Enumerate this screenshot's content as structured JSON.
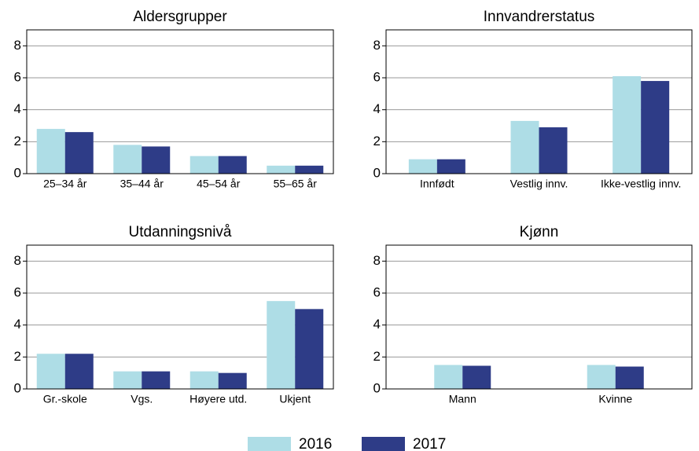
{
  "chart_data": [
    {
      "type": "bar",
      "title": "Aldersgrupper",
      "categories": [
        "25–34 år",
        "35–44 år",
        "45–54 år",
        "55–65 år"
      ],
      "series": [
        {
          "name": "2016",
          "color": "#aedde6",
          "values": [
            2.8,
            1.8,
            1.1,
            0.5
          ]
        },
        {
          "name": "2017",
          "color": "#2e3c87",
          "values": [
            2.6,
            1.7,
            1.1,
            0.5
          ]
        }
      ],
      "ylim": [
        0,
        9
      ],
      "yticks": [
        0,
        2,
        4,
        6,
        8
      ],
      "grid": true
    },
    {
      "type": "bar",
      "title": "Innvandrerstatus",
      "categories": [
        "Innfødt",
        "Vestlig innv.",
        "Ikke-vestlig innv."
      ],
      "series": [
        {
          "name": "2016",
          "color": "#aedde6",
          "values": [
            0.9,
            3.3,
            6.1
          ]
        },
        {
          "name": "2017",
          "color": "#2e3c87",
          "values": [
            0.9,
            2.9,
            5.8
          ]
        }
      ],
      "ylim": [
        0,
        9
      ],
      "yticks": [
        0,
        2,
        4,
        6,
        8
      ],
      "grid": true
    },
    {
      "type": "bar",
      "title": "Utdanningsnivå",
      "categories": [
        "Gr.-skole",
        "Vgs.",
        "Høyere utd.",
        "Ukjent"
      ],
      "series": [
        {
          "name": "2016",
          "color": "#aedde6",
          "values": [
            2.2,
            1.1,
            1.1,
            5.5
          ]
        },
        {
          "name": "2017",
          "color": "#2e3c87",
          "values": [
            2.2,
            1.1,
            1.0,
            5.0
          ]
        }
      ],
      "ylim": [
        0,
        9
      ],
      "yticks": [
        0,
        2,
        4,
        6,
        8
      ],
      "grid": true
    },
    {
      "type": "bar",
      "title": "Kjønn",
      "categories": [
        "Mann",
        "Kvinne"
      ],
      "series": [
        {
          "name": "2016",
          "color": "#aedde6",
          "values": [
            1.5,
            1.5
          ]
        },
        {
          "name": "2017",
          "color": "#2e3c87",
          "values": [
            1.45,
            1.4
          ]
        }
      ],
      "ylim": [
        0,
        9
      ],
      "yticks": [
        0,
        2,
        4,
        6,
        8
      ],
      "grid": true
    }
  ]
}
